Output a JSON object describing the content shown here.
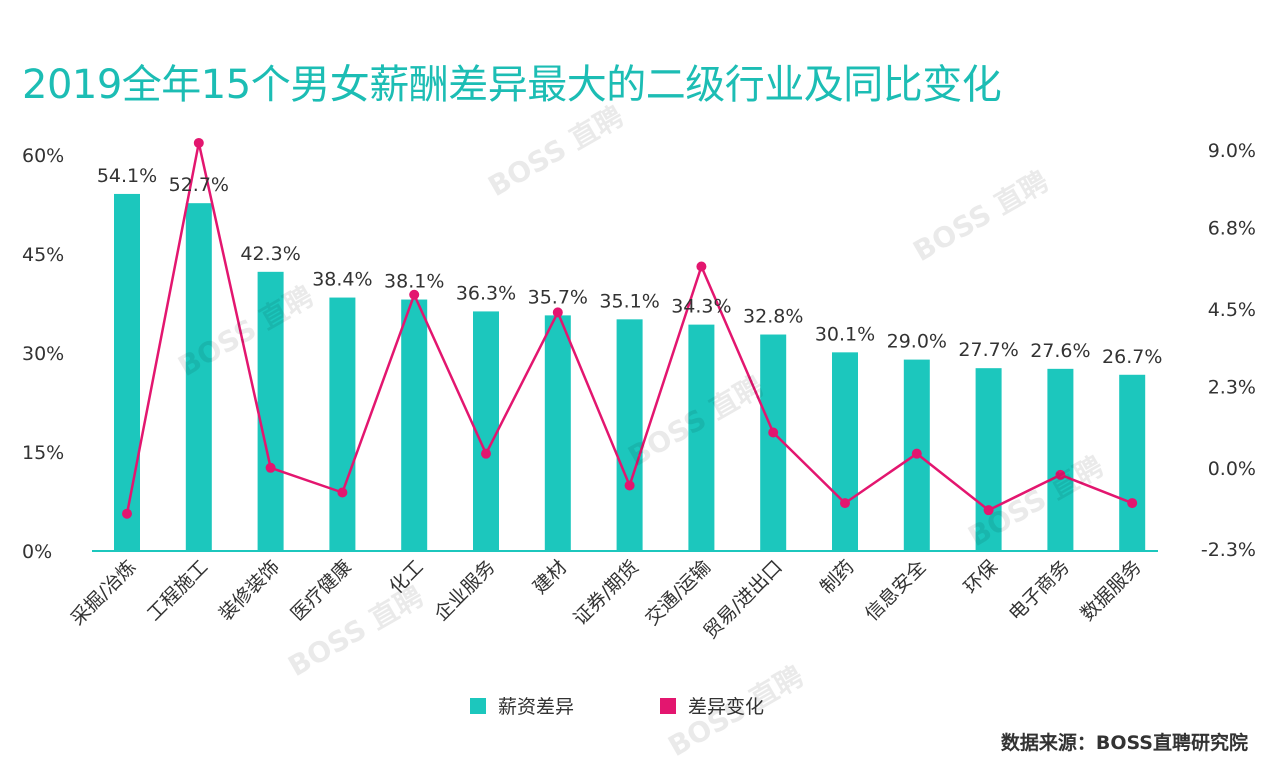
{
  "title": "2019全年15个男女薪酬差异最大的二级行业及同比变化",
  "source": "数据来源：BOSS直聘研究院",
  "watermark": "BOSS 直聘",
  "chart_data": {
    "type": "bar",
    "title": "2019全年15个男女薪酬差异最大的二级行业及同比变化",
    "categories": [
      "采掘/冶炼",
      "工程施工",
      "装修装饰",
      "医疗健康",
      "化工",
      "企业服务",
      "建材",
      "证券/期货",
      "交通/运输",
      "贸易/进出口",
      "制药",
      "信息安全",
      "环保",
      "电子商务",
      "数据服务"
    ],
    "series": [
      {
        "name": "薪资差异",
        "type": "bar",
        "axis": "left",
        "color": "#1cc7bd",
        "values": [
          54.1,
          52.7,
          42.3,
          38.4,
          38.1,
          36.3,
          35.7,
          35.1,
          34.3,
          32.8,
          30.1,
          29.0,
          27.7,
          27.6,
          26.7
        ],
        "labels": [
          "54.1%",
          "52.7%",
          "42.3%",
          "38.4%",
          "38.1%",
          "36.3%",
          "35.7%",
          "35.1%",
          "34.3%",
          "32.8%",
          "30.1%",
          "29.0%",
          "27.7%",
          "27.6%",
          "26.7%"
        ]
      },
      {
        "name": "差异变化",
        "type": "line",
        "axis": "right",
        "color": "#e3166f",
        "values": [
          -1.3,
          9.2,
          0.0,
          -0.7,
          4.9,
          0.4,
          4.4,
          -0.5,
          5.7,
          1.0,
          -1.0,
          0.4,
          -1.2,
          -0.2,
          -1.0
        ]
      }
    ],
    "left_axis": {
      "ticks": [
        "0%",
        "15%",
        "30%",
        "45%",
        "60%"
      ],
      "tick_values": [
        0,
        15,
        30,
        45,
        60
      ],
      "range": [
        0,
        60
      ]
    },
    "right_axis": {
      "ticks": [
        "-2.3%",
        "0.0%",
        "2.3%",
        "4.5%",
        "6.8%",
        "9.0%"
      ],
      "tick_values": [
        -2.3,
        0.0,
        2.3,
        4.5,
        6.8,
        9.0
      ],
      "range": [
        -2.3,
        9.0
      ]
    },
    "legend": {
      "position": "bottom",
      "items": [
        "薪资差异",
        "差异变化"
      ]
    }
  }
}
